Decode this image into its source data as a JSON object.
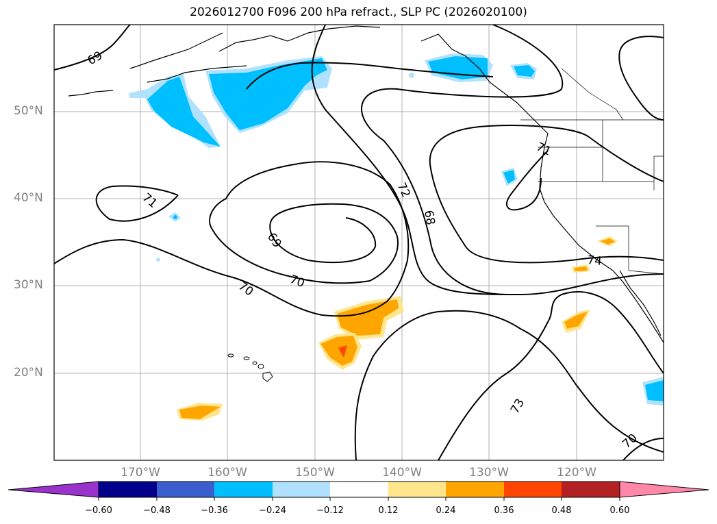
{
  "title": "2026012700 F096 200 hPa refract., SLP PC (2026020100)",
  "lat_labels": [
    "50°N",
    "40°N",
    "30°N",
    "20°N"
  ],
  "lon_labels": [
    "170°W",
    "160°W",
    "150°W",
    "140°W",
    "130°W",
    "120°W"
  ],
  "contour_labels": [
    "69",
    "70",
    "71",
    "72",
    "68",
    "69",
    "70",
    "70",
    "73",
    "74",
    "71"
  ],
  "colorbar": {
    "ticks": [
      "−0.60",
      "−0.48",
      "−0.36",
      "−0.24",
      "−0.12",
      "0.12",
      "0.24",
      "0.36",
      "0.48",
      "0.60"
    ],
    "colors": [
      "#9933cc",
      "#00008b",
      "#3a5fcd",
      "#00bfff",
      "#b0e2ff",
      "#ffffff",
      "#ffe68c",
      "#ffa500",
      "#ff4500",
      "#b22222",
      "#ff88aa"
    ]
  }
}
